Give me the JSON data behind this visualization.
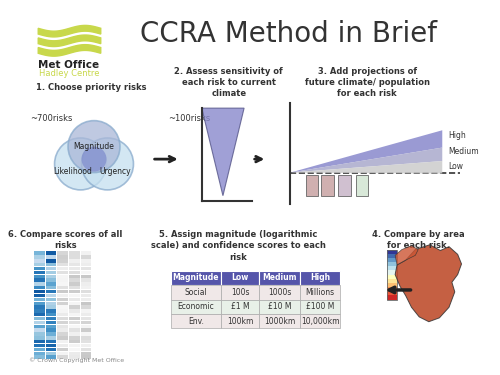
{
  "title": "CCRA Method in Brief",
  "bg_color": "#ffffff",
  "title_fontsize": 20,
  "title_color": "#333333",
  "metoffice_text": "Met Office",
  "hadley_text": "Hadley Centre",
  "logo_color": "#c8d84b",
  "step1_title": "1. Choose priority risks",
  "step2_title": "2. Assess sensitivity of\neach risk to current\nclimate",
  "step3_title": "3. Add projections of\nfuture climate/ population\nfor each risk",
  "step4_title": "4. Compare by area\nfor each risk.",
  "step5_title": "5. Assign magnitude (logarithmic\nscale) and confidence scores to each\nrisk",
  "step6_title": "6. Compare scores of all\nrisks",
  "label_700": "~700risks",
  "label_100": "~100risks",
  "venn_labels": [
    "Magnitude",
    "Likelihood",
    "Urgency"
  ],
  "table_header": [
    "Magnitude",
    "Low",
    "Medium",
    "High"
  ],
  "table_header_bg": "#5555aa",
  "table_header_color": "#ffffff",
  "table_rows": [
    [
      "Social",
      "100s",
      "1000s",
      "Millions"
    ],
    [
      "Economic",
      "£1 M",
      "£10 M",
      "£100 M"
    ],
    [
      "Env.",
      "100km",
      "1000km",
      "10,000km"
    ]
  ],
  "table_row_bg_odd": "#f0e8e8",
  "table_row_bg_even": "#e8f0e8",
  "high_label": "High",
  "medium_label": "Medium",
  "low_label": "Low",
  "copyright": "© Crown Copyright Met Office",
  "arrow_color": "#222222",
  "logo_wave_color": "#c8d84b",
  "fan_colors": [
    "#8888cc",
    "#aaaacc",
    "#cccccc"
  ],
  "cone_face": "#8888cc",
  "cone_edge": "#555588",
  "venn_c1_face": "#c5e0f0",
  "venn_c1_edge": "#88aacc",
  "venn_c3_face": "#aab8d8",
  "venn_mid_face": "#7b87cc",
  "bar_colors": [
    "#d0b0b0",
    "#d0b0b0",
    "#d0c0d0",
    "#d8e8d8"
  ]
}
